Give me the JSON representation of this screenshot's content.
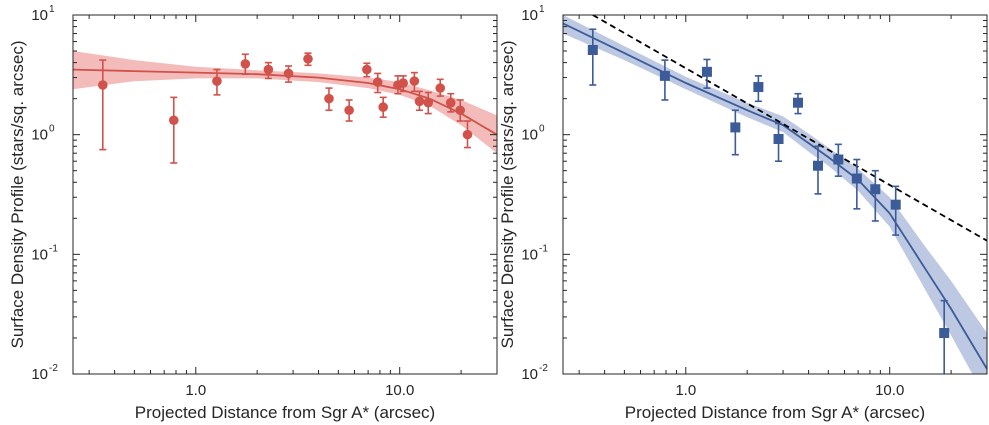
{
  "chart_data": [
    {
      "type": "scatter",
      "xlabel": "Projected Distance from Sgr A* (arcsec)",
      "ylabel": "Surface Density Profile (stars/sq. arcsec)",
      "xscale": "log",
      "yscale": "log",
      "xlim": [
        0.25,
        30
      ],
      "ylim": [
        0.01,
        10
      ],
      "xticks": [
        {
          "value": 1.0,
          "label": "1.0"
        },
        {
          "value": 10.0,
          "label": "10.0"
        }
      ],
      "yticks": [
        {
          "value": 0.01,
          "base": "10",
          "exp": "-2"
        },
        {
          "value": 0.1,
          "base": "10",
          "exp": "-1"
        },
        {
          "value": 1,
          "base": "10",
          "exp": "0"
        },
        {
          "value": 10,
          "base": "10",
          "exp": "1"
        }
      ],
      "color": "#d1524a",
      "band_color": "#efa6a3",
      "marker": "circle",
      "points": [
        {
          "x": 0.35,
          "y": 2.6,
          "lo": 0.75,
          "hi": 4.2
        },
        {
          "x": 0.78,
          "y": 1.32,
          "lo": 0.58,
          "hi": 2.05
        },
        {
          "x": 1.27,
          "y": 2.8,
          "lo": 2.15,
          "hi": 3.5
        },
        {
          "x": 1.75,
          "y": 3.9,
          "lo": 3.2,
          "hi": 4.7
        },
        {
          "x": 2.27,
          "y": 3.5,
          "lo": 2.95,
          "hi": 4.0
        },
        {
          "x": 2.85,
          "y": 3.25,
          "lo": 2.75,
          "hi": 3.75
        },
        {
          "x": 3.55,
          "y": 4.3,
          "lo": 3.8,
          "hi": 4.8
        },
        {
          "x": 4.5,
          "y": 2.0,
          "lo": 1.6,
          "hi": 2.45
        },
        {
          "x": 5.65,
          "y": 1.6,
          "lo": 1.3,
          "hi": 1.95
        },
        {
          "x": 6.9,
          "y": 3.5,
          "lo": 3.05,
          "hi": 3.95
        },
        {
          "x": 7.8,
          "y": 2.75,
          "lo": 2.25,
          "hi": 3.25
        },
        {
          "x": 8.3,
          "y": 1.7,
          "lo": 1.4,
          "hi": 2.05
        },
        {
          "x": 9.8,
          "y": 2.6,
          "lo": 2.2,
          "hi": 3.1
        },
        {
          "x": 10.4,
          "y": 2.7,
          "lo": 2.3,
          "hi": 3.1
        },
        {
          "x": 11.8,
          "y": 2.8,
          "lo": 2.3,
          "hi": 3.3
        },
        {
          "x": 12.5,
          "y": 1.9,
          "lo": 1.6,
          "hi": 2.3
        },
        {
          "x": 13.8,
          "y": 1.85,
          "lo": 1.5,
          "hi": 2.25
        },
        {
          "x": 15.8,
          "y": 2.45,
          "lo": 2.1,
          "hi": 2.9
        },
        {
          "x": 17.8,
          "y": 1.85,
          "lo": 1.55,
          "hi": 2.2
        },
        {
          "x": 19.8,
          "y": 1.6,
          "lo": 1.3,
          "hi": 1.95
        },
        {
          "x": 21.5,
          "y": 1.0,
          "lo": 0.78,
          "hi": 1.3
        }
      ],
      "model_curve": [
        {
          "x": 0.25,
          "y": 3.5,
          "lo": 2.4,
          "hi": 5.0
        },
        {
          "x": 0.5,
          "y": 3.4,
          "lo": 2.8,
          "hi": 4.2
        },
        {
          "x": 1.0,
          "y": 3.3,
          "lo": 2.95,
          "hi": 3.7
        },
        {
          "x": 2.0,
          "y": 3.2,
          "lo": 2.95,
          "hi": 3.45
        },
        {
          "x": 4.0,
          "y": 3.0,
          "lo": 2.75,
          "hi": 3.25
        },
        {
          "x": 7.0,
          "y": 2.7,
          "lo": 2.45,
          "hi": 3.0
        },
        {
          "x": 10.0,
          "y": 2.4,
          "lo": 2.15,
          "hi": 2.75
        },
        {
          "x": 14.0,
          "y": 2.0,
          "lo": 1.75,
          "hi": 2.35
        },
        {
          "x": 20.0,
          "y": 1.5,
          "lo": 1.2,
          "hi": 1.95
        },
        {
          "x": 30.0,
          "y": 1.0,
          "lo": 0.7,
          "hi": 1.45
        }
      ]
    },
    {
      "type": "scatter",
      "xlabel": "Projected Distance from Sgr A* (arcsec)",
      "ylabel": "Surface Density Profile (stars/sq. arcsec)",
      "xscale": "log",
      "yscale": "log",
      "xlim": [
        0.25,
        30
      ],
      "ylim": [
        0.01,
        10
      ],
      "xticks": [
        {
          "value": 1.0,
          "label": "1.0"
        },
        {
          "value": 10.0,
          "label": "10.0"
        }
      ],
      "yticks": [
        {
          "value": 0.01,
          "base": "10",
          "exp": "-2"
        },
        {
          "value": 0.1,
          "base": "10",
          "exp": "-1"
        },
        {
          "value": 1,
          "base": "10",
          "exp": "0"
        },
        {
          "value": 10,
          "base": "10",
          "exp": "1"
        }
      ],
      "color": "#3b5b99",
      "band_color": "#a7b7d8",
      "marker": "square",
      "points": [
        {
          "x": 0.35,
          "y": 5.1,
          "lo": 2.6,
          "hi": 7.6
        },
        {
          "x": 0.79,
          "y": 3.1,
          "lo": 1.95,
          "hi": 4.2
        },
        {
          "x": 1.27,
          "y": 3.35,
          "lo": 2.45,
          "hi": 4.25
        },
        {
          "x": 1.75,
          "y": 1.15,
          "lo": 0.68,
          "hi": 1.6
        },
        {
          "x": 2.27,
          "y": 2.5,
          "lo": 1.9,
          "hi": 3.1
        },
        {
          "x": 2.85,
          "y": 0.92,
          "lo": 0.6,
          "hi": 1.24
        },
        {
          "x": 3.55,
          "y": 1.85,
          "lo": 1.5,
          "hi": 2.2
        },
        {
          "x": 4.45,
          "y": 0.55,
          "lo": 0.32,
          "hi": 0.8
        },
        {
          "x": 5.6,
          "y": 0.62,
          "lo": 0.45,
          "hi": 0.83
        },
        {
          "x": 6.9,
          "y": 0.43,
          "lo": 0.24,
          "hi": 0.62
        },
        {
          "x": 8.5,
          "y": 0.35,
          "lo": 0.19,
          "hi": 0.5
        },
        {
          "x": 10.7,
          "y": 0.26,
          "lo": 0.145,
          "hi": 0.37
        },
        {
          "x": 18.5,
          "y": 0.022,
          "lo": 0.009,
          "hi": 0.041
        }
      ],
      "model_curve": [
        {
          "x": 0.25,
          "y": 8.5,
          "lo": 7.0,
          "hi": 10.0
        },
        {
          "x": 0.5,
          "y": 4.8,
          "lo": 4.2,
          "hi": 5.5
        },
        {
          "x": 1.0,
          "y": 2.7,
          "lo": 2.4,
          "hi": 3.05
        },
        {
          "x": 2.0,
          "y": 1.6,
          "lo": 1.4,
          "hi": 1.85
        },
        {
          "x": 3.0,
          "y": 1.2,
          "lo": 1.05,
          "hi": 1.42
        },
        {
          "x": 4.0,
          "y": 0.85,
          "lo": 0.72,
          "hi": 1.02
        },
        {
          "x": 5.0,
          "y": 0.65,
          "lo": 0.55,
          "hi": 0.78
        },
        {
          "x": 7.0,
          "y": 0.42,
          "lo": 0.34,
          "hi": 0.52
        },
        {
          "x": 10.0,
          "y": 0.22,
          "lo": 0.17,
          "hi": 0.3
        },
        {
          "x": 15.0,
          "y": 0.075,
          "lo": 0.05,
          "hi": 0.115
        },
        {
          "x": 20.0,
          "y": 0.035,
          "lo": 0.021,
          "hi": 0.06
        },
        {
          "x": 30.0,
          "y": 0.011,
          "lo": 0.006,
          "hi": 0.022
        }
      ],
      "power_law": {
        "color": "#000000",
        "style": "dashed",
        "points": [
          {
            "x": 0.35,
            "y": 10.0
          },
          {
            "x": 30.0,
            "y": 0.13
          }
        ]
      }
    }
  ]
}
